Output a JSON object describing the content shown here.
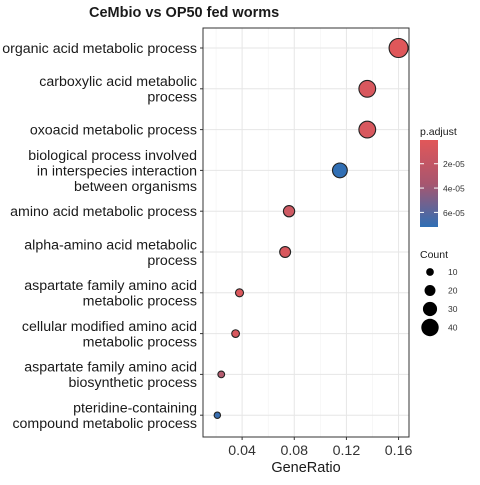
{
  "chart_data": {
    "type": "scatter",
    "title": "CeMbio vs OP50 fed worms",
    "xlabel": "GeneRatio",
    "ylabel": "",
    "xlim": [
      0.01,
      0.168
    ],
    "xticks": [
      0.04,
      0.08,
      0.12,
      0.16
    ],
    "xtick_labels": [
      "0.04",
      "0.08",
      "0.12",
      "0.16"
    ],
    "grid": true,
    "categories": [
      "organic acid metabolic process",
      "carboxylic acid metabolic process",
      "oxoacid metabolic process",
      "biological process involved in interspecies interaction between organisms",
      "amino acid metabolic process",
      "alpha-amino acid metabolic process",
      "aspartate family amino acid metabolic process",
      "cellular modified amino acid metabolic process",
      "aspartate family amino acid biosynthetic process",
      "pteridine-containing compound metabolic process"
    ],
    "category_labels": [
      [
        "organic acid metabolic process"
      ],
      [
        "carboxylic acid metabolic",
        "process"
      ],
      [
        "oxoacid metabolic process"
      ],
      [
        "biological process involved",
        "in interspecies interaction",
        "between organisms"
      ],
      [
        "amino acid metabolic process"
      ],
      [
        "alpha-amino acid metabolic",
        "process"
      ],
      [
        "aspartate family amino acid",
        "metabolic process"
      ],
      [
        "cellular modified amino acid",
        "metabolic process"
      ],
      [
        "aspartate family amino acid",
        "biosynthetic process"
      ],
      [
        "pteridine-containing",
        "compound metabolic process"
      ]
    ],
    "points": [
      {
        "gene_ratio": 0.16,
        "count": 45,
        "p_adjust": 1.5e-06
      },
      {
        "gene_ratio": 0.136,
        "count": 38,
        "p_adjust": 4e-06
      },
      {
        "gene_ratio": 0.136,
        "count": 38,
        "p_adjust": 4e-06
      },
      {
        "gene_ratio": 0.115,
        "count": 32,
        "p_adjust": 7.1e-05
      },
      {
        "gene_ratio": 0.076,
        "count": 21,
        "p_adjust": 8e-06
      },
      {
        "gene_ratio": 0.073,
        "count": 20,
        "p_adjust": 4e-06
      },
      {
        "gene_ratio": 0.038,
        "count": 11,
        "p_adjust": 3e-06
      },
      {
        "gene_ratio": 0.035,
        "count": 10,
        "p_adjust": 4e-06
      },
      {
        "gene_ratio": 0.024,
        "count": 7,
        "p_adjust": 1.8e-05
      },
      {
        "gene_ratio": 0.021,
        "count": 6,
        "p_adjust": 6.8e-05
      }
    ],
    "legend_color": {
      "title": "p.adjust",
      "ticks": [
        2e-05,
        4e-05,
        6e-05
      ],
      "tick_labels": [
        "2e-05",
        "4e-05",
        "6e-05"
      ],
      "range": [
        5e-07,
        7.2e-05
      ],
      "low_color": "#e15759",
      "high_color": "#2f6fb5"
    },
    "legend_size": {
      "title": "Count",
      "values": [
        10,
        20,
        30,
        40
      ],
      "labels": [
        "10",
        "20",
        "30",
        "40"
      ]
    },
    "legend_placement": "right",
    "colors": {
      "point_stroke": "#222222",
      "panel_border": "#333333",
      "grid": "#e6e6e6",
      "text": "#1a1a1a"
    }
  }
}
